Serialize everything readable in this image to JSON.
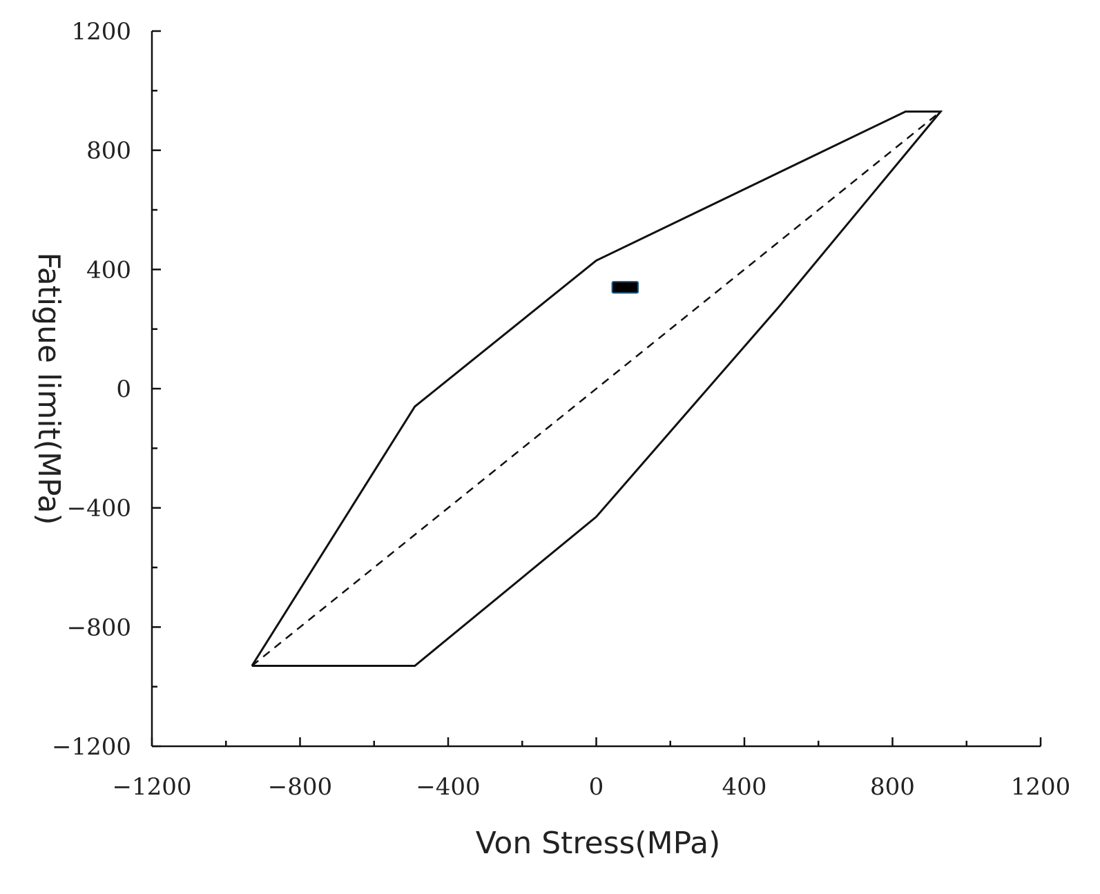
{
  "chart_data": {
    "type": "line",
    "title": "",
    "xlabel": "Von Stress(MPa)",
    "ylabel": "Fatigue limit(MPa)",
    "xlim": [
      -1200,
      1200
    ],
    "ylim": [
      -1200,
      1200
    ],
    "xticks": [
      -1200,
      -800,
      -400,
      0,
      400,
      800,
      1200
    ],
    "yticks": [
      -1200,
      -800,
      -400,
      0,
      400,
      800,
      1200
    ],
    "xticklabels": [
      "−1200",
      "−800",
      "−400",
      "0",
      "400",
      "800",
      "1200"
    ],
    "yticklabels": [
      "−1200",
      "−800",
      "−400",
      "0",
      "400",
      "800",
      "1200"
    ],
    "minor_tick_step": 200,
    "grid": false,
    "legend": "none",
    "series": [
      {
        "style": "solid",
        "points": [
          [
            -930,
            -930
          ],
          [
            -490,
            -930
          ],
          [
            0,
            -430
          ],
          [
            490,
            270
          ],
          [
            930,
            930
          ],
          [
            835,
            930
          ],
          [
            0,
            430
          ],
          [
            -490,
            -60
          ],
          [
            -930,
            -930
          ]
        ]
      },
      {
        "style": "dashed",
        "points": [
          [
            -930,
            -930
          ],
          [
            930,
            930
          ]
        ]
      }
    ],
    "markers": [
      {
        "x": 78,
        "y": 340,
        "x_width": 70,
        "y_height": 38,
        "color": "#000000",
        "edge_color": "#1f5f8a"
      }
    ]
  }
}
